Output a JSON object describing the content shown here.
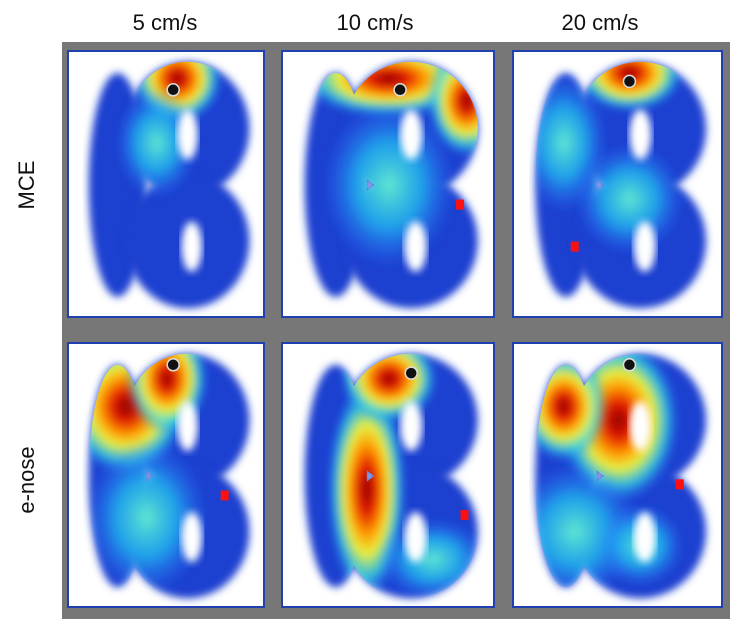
{
  "columns": [
    "5 cm/s",
    "10 cm/s",
    "20 cm/s"
  ],
  "rows": [
    "MCE",
    "e-nose"
  ]
}
